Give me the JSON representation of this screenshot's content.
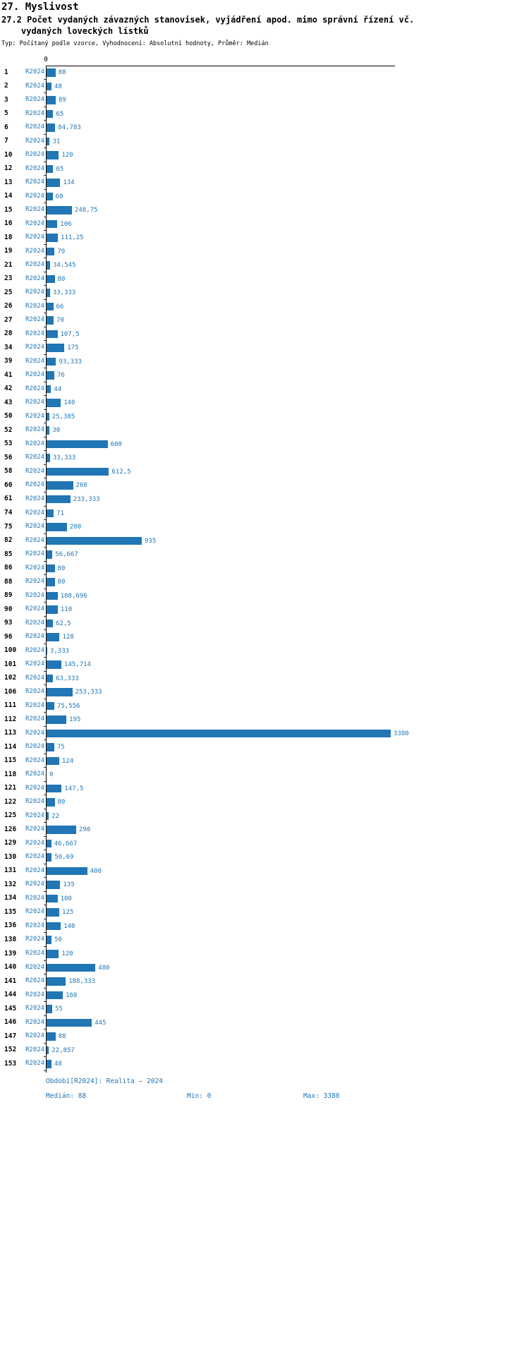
{
  "header": {
    "title": "27. Myslivost",
    "subtitle_line1": "27.2 Počet vydaných závazných stanovisek, vyjádření apod. mimo správní řízení vč.",
    "subtitle_line2": "vydaných loveckých lístků",
    "meta": "Typ: Počítaný podle vzorce, Vyhodnocení: Absolutní hodnoty, Průměr: Medián"
  },
  "footer": {
    "period": "Období[R2024]: Realita – 2024",
    "median_label": "Medián: 88",
    "min_label": "Min: 0",
    "max_label": "Max: 3380"
  },
  "chart_data": {
    "type": "bar",
    "orientation": "horizontal",
    "title": "27. Myslivost",
    "subtitle": "27.2 Počet vydaných závazných stanovisek, vyjádření apod. mimo správní řízení vč. vydaných loveckých lístků",
    "meta": "Typ: Počítaný podle vzorce, Vyhodnocení: Absolutní hodnoty, Průměr: Medián",
    "series_label": "R2024",
    "axis_zero_label": "0",
    "xlim": [
      0,
      3380
    ],
    "legend_position": "none",
    "grid": false,
    "stats": {
      "median": 88,
      "min": 0,
      "max": 3380
    },
    "colors": {
      "bar": "#2176b5",
      "accent_text": "#2176b5",
      "axis": "#000000"
    },
    "rows": [
      {
        "id": "1",
        "value": 88,
        "display": "88"
      },
      {
        "id": "2",
        "value": 48,
        "display": "48"
      },
      {
        "id": "3",
        "value": 89,
        "display": "89"
      },
      {
        "id": "5",
        "value": 65,
        "display": "65"
      },
      {
        "id": "6",
        "value": 84.783,
        "display": "84,783"
      },
      {
        "id": "7",
        "value": 31,
        "display": "31"
      },
      {
        "id": "10",
        "value": 120,
        "display": "120"
      },
      {
        "id": "12",
        "value": 65,
        "display": "65"
      },
      {
        "id": "13",
        "value": 134,
        "display": "134"
      },
      {
        "id": "14",
        "value": 60,
        "display": "60"
      },
      {
        "id": "15",
        "value": 248.75,
        "display": "248,75"
      },
      {
        "id": "16",
        "value": 106,
        "display": "106"
      },
      {
        "id": "18",
        "value": 111.25,
        "display": "111,25"
      },
      {
        "id": "19",
        "value": 79,
        "display": "79"
      },
      {
        "id": "21",
        "value": 34.545,
        "display": "34,545"
      },
      {
        "id": "23",
        "value": 80,
        "display": "80"
      },
      {
        "id": "25",
        "value": 33.333,
        "display": "33,333"
      },
      {
        "id": "26",
        "value": 66,
        "display": "66"
      },
      {
        "id": "27",
        "value": 70,
        "display": "70"
      },
      {
        "id": "28",
        "value": 107.5,
        "display": "107,5"
      },
      {
        "id": "34",
        "value": 175,
        "display": "175"
      },
      {
        "id": "39",
        "value": 93.333,
        "display": "93,333"
      },
      {
        "id": "41",
        "value": 76,
        "display": "76"
      },
      {
        "id": "42",
        "value": 44,
        "display": "44"
      },
      {
        "id": "43",
        "value": 140,
        "display": "140"
      },
      {
        "id": "50",
        "value": 25.385,
        "display": "25,385"
      },
      {
        "id": "52",
        "value": 30,
        "display": "30"
      },
      {
        "id": "53",
        "value": 600,
        "display": "600"
      },
      {
        "id": "56",
        "value": 33.333,
        "display": "33,333"
      },
      {
        "id": "58",
        "value": 612.5,
        "display": "612,5"
      },
      {
        "id": "60",
        "value": 260,
        "display": "260"
      },
      {
        "id": "61",
        "value": 233.333,
        "display": "233,333"
      },
      {
        "id": "74",
        "value": 71,
        "display": "71"
      },
      {
        "id": "75",
        "value": 200,
        "display": "200"
      },
      {
        "id": "82",
        "value": 935,
        "display": "935"
      },
      {
        "id": "85",
        "value": 56.667,
        "display": "56,667"
      },
      {
        "id": "86",
        "value": 80,
        "display": "80"
      },
      {
        "id": "88",
        "value": 80,
        "display": "80"
      },
      {
        "id": "89",
        "value": 108.696,
        "display": "108,696"
      },
      {
        "id": "90",
        "value": 110,
        "display": "110"
      },
      {
        "id": "93",
        "value": 62.5,
        "display": "62,5"
      },
      {
        "id": "96",
        "value": 128,
        "display": "128"
      },
      {
        "id": "100",
        "value": 3.333,
        "display": "3,333"
      },
      {
        "id": "101",
        "value": 145.714,
        "display": "145,714"
      },
      {
        "id": "102",
        "value": 63.333,
        "display": "63,333"
      },
      {
        "id": "106",
        "value": 253.333,
        "display": "253,333"
      },
      {
        "id": "111",
        "value": 75.556,
        "display": "75,556"
      },
      {
        "id": "112",
        "value": 195,
        "display": "195"
      },
      {
        "id": "113",
        "value": 3380,
        "display": "3380"
      },
      {
        "id": "114",
        "value": 75,
        "display": "75"
      },
      {
        "id": "115",
        "value": 124,
        "display": "124"
      },
      {
        "id": "118",
        "value": 0,
        "display": "0"
      },
      {
        "id": "121",
        "value": 147.5,
        "display": "147,5"
      },
      {
        "id": "122",
        "value": 80,
        "display": "80"
      },
      {
        "id": "125",
        "value": 22,
        "display": "22"
      },
      {
        "id": "126",
        "value": 290,
        "display": "290"
      },
      {
        "id": "129",
        "value": 46.667,
        "display": "46,667"
      },
      {
        "id": "130",
        "value": 50.69,
        "display": "50,69"
      },
      {
        "id": "131",
        "value": 400,
        "display": "400"
      },
      {
        "id": "132",
        "value": 135,
        "display": "135"
      },
      {
        "id": "134",
        "value": 108,
        "display": "108"
      },
      {
        "id": "135",
        "value": 125,
        "display": "125"
      },
      {
        "id": "136",
        "value": 140,
        "display": "140"
      },
      {
        "id": "138",
        "value": 50,
        "display": "50"
      },
      {
        "id": "139",
        "value": 120,
        "display": "120"
      },
      {
        "id": "140",
        "value": 480,
        "display": "480"
      },
      {
        "id": "141",
        "value": 188.333,
        "display": "188,333"
      },
      {
        "id": "144",
        "value": 160,
        "display": "160"
      },
      {
        "id": "145",
        "value": 55,
        "display": "55"
      },
      {
        "id": "146",
        "value": 445,
        "display": "445"
      },
      {
        "id": "147",
        "value": 88,
        "display": "88"
      },
      {
        "id": "152",
        "value": 22.857,
        "display": "22,857"
      },
      {
        "id": "153",
        "value": 48,
        "display": "48"
      }
    ]
  }
}
